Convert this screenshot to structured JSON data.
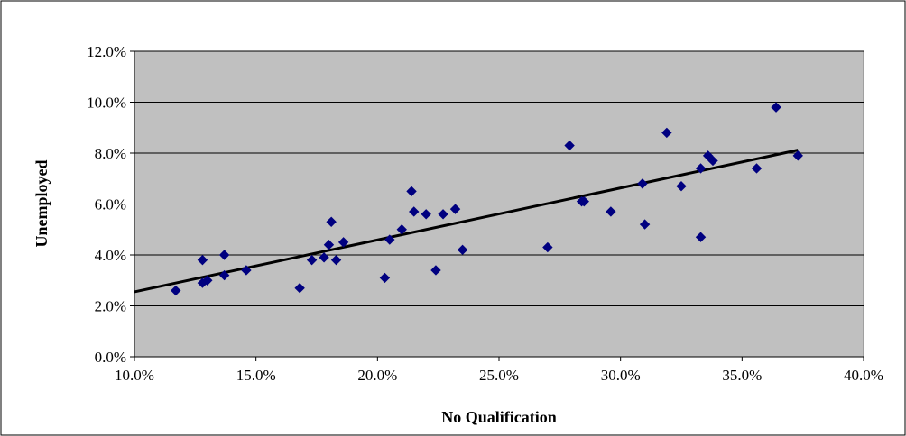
{
  "chart_data": {
    "type": "scatter",
    "title": "",
    "xlabel": "No Qualification",
    "ylabel": "Unemployed",
    "xlim": [
      0.1,
      0.4
    ],
    "ylim": [
      0.0,
      0.12
    ],
    "x_ticks": [
      "10.0%",
      "15.0%",
      "20.0%",
      "25.0%",
      "30.0%",
      "35.0%",
      "40.0%"
    ],
    "y_ticks": [
      "0.0%",
      "2.0%",
      "4.0%",
      "6.0%",
      "8.0%",
      "10.0%",
      "12.0%"
    ],
    "grid": "horizontal",
    "legend": "none",
    "colors": {
      "plot_background": "#c0c0c0",
      "marker": "#000080",
      "trendline": "#000000",
      "gridline": "#000000"
    },
    "points": [
      [
        0.117,
        0.026
      ],
      [
        0.128,
        0.038
      ],
      [
        0.128,
        0.029
      ],
      [
        0.13,
        0.03
      ],
      [
        0.137,
        0.04
      ],
      [
        0.137,
        0.032
      ],
      [
        0.146,
        0.034
      ],
      [
        0.168,
        0.027
      ],
      [
        0.173,
        0.038
      ],
      [
        0.178,
        0.039
      ],
      [
        0.18,
        0.044
      ],
      [
        0.181,
        0.053
      ],
      [
        0.183,
        0.038
      ],
      [
        0.186,
        0.045
      ],
      [
        0.203,
        0.031
      ],
      [
        0.205,
        0.046
      ],
      [
        0.21,
        0.05
      ],
      [
        0.214,
        0.065
      ],
      [
        0.215,
        0.057
      ],
      [
        0.22,
        0.056
      ],
      [
        0.224,
        0.034
      ],
      [
        0.227,
        0.056
      ],
      [
        0.232,
        0.058
      ],
      [
        0.235,
        0.042
      ],
      [
        0.27,
        0.043
      ],
      [
        0.279,
        0.083
      ],
      [
        0.284,
        0.061
      ],
      [
        0.285,
        0.061
      ],
      [
        0.296,
        0.057
      ],
      [
        0.309,
        0.068
      ],
      [
        0.31,
        0.052
      ],
      [
        0.319,
        0.088
      ],
      [
        0.325,
        0.067
      ],
      [
        0.333,
        0.047
      ],
      [
        0.333,
        0.074
      ],
      [
        0.336,
        0.079
      ],
      [
        0.338,
        0.077
      ],
      [
        0.356,
        0.074
      ],
      [
        0.364,
        0.098
      ],
      [
        0.373,
        0.079
      ]
    ],
    "trendline": {
      "type": "linear",
      "x": [
        0.1,
        0.373
      ],
      "y": [
        0.0255,
        0.0812
      ]
    }
  }
}
